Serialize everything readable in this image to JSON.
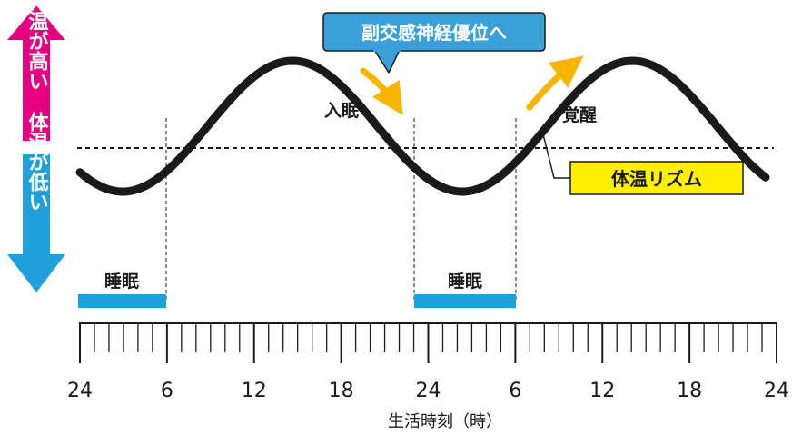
{
  "colors": {
    "pink": "#e4007f",
    "blue": "#1fa0db",
    "yellow_arrow": "#f7b500",
    "callout_fill": "#3aa0d8",
    "label_yellow": "#ffef00",
    "curve": "#1a1a1a"
  },
  "side_arrows": {
    "high": "体温が高い",
    "low": "体温が低い"
  },
  "callout": {
    "text": "副交感神経優位へ"
  },
  "annotations": {
    "sleep_onset": "入眠",
    "wake": "覚醒",
    "rhythm_label": "体温リズム"
  },
  "sleep_labels": [
    "睡眠",
    "睡眠"
  ],
  "axis": {
    "ticks": [
      "24",
      "6",
      "12",
      "18",
      "24",
      "6",
      "12",
      "18",
      "24"
    ],
    "title": "生活時刻（時）"
  }
}
